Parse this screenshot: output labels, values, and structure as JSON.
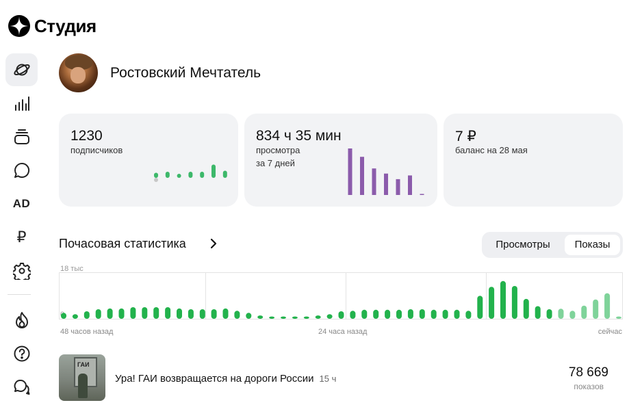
{
  "app": {
    "logo_label": "Студия",
    "logo_icon": "zen-star-icon"
  },
  "sidebar": {
    "items": [
      {
        "name": "planet",
        "label": "",
        "icon": "planet-icon",
        "active": true
      },
      {
        "name": "stats",
        "label": "",
        "icon": "bar-chart-icon"
      },
      {
        "name": "content",
        "label": "",
        "icon": "stack-icon"
      },
      {
        "name": "comments",
        "label": "",
        "icon": "comment-icon"
      },
      {
        "name": "ads",
        "label": "AD",
        "icon": "ad-icon"
      },
      {
        "name": "monetization",
        "label": "₽",
        "icon": "ruble-icon"
      },
      {
        "name": "settings",
        "label": "",
        "icon": "gear-icon"
      },
      {
        "name": "trending",
        "label": "",
        "icon": "fire-icon"
      },
      {
        "name": "help",
        "label": "",
        "icon": "help-icon"
      },
      {
        "name": "messages",
        "label": "",
        "icon": "chat-icon"
      }
    ]
  },
  "channel": {
    "name": "Ростовский Мечтатель"
  },
  "cards": {
    "subscribers": {
      "value": "1230",
      "label": "подписчиков",
      "spark_color": "#3db86a",
      "spark_values": [
        0.25,
        0.3,
        0.2,
        0.3,
        0.3,
        0.65,
        0.35
      ],
      "spark_dips": [
        0.2,
        0,
        0,
        0,
        0,
        0,
        0
      ]
    },
    "watch_time": {
      "value": "834 ч 35 мин",
      "label": "просмотра",
      "sublabel": "за 7 дней",
      "spark_color": "#8b5bab",
      "spark_values": [
        1.0,
        0.82,
        0.57,
        0.46,
        0.34,
        0.42,
        0.02
      ]
    },
    "balance": {
      "value": "7 ₽",
      "label": "баланс на 28 мая"
    }
  },
  "hourly": {
    "title": "Почасовая статистика",
    "tabs": [
      "Просмотры",
      "Показы"
    ],
    "selected_tab": "Показы",
    "y_max_label": "18 тыс",
    "y_min_label": "0",
    "x_labels": {
      "left": "48 часов назад",
      "middle": "24 часа назад",
      "right": "сейчас"
    },
    "bar_color": "#22b24c",
    "bar_color_light": "#7fd39a",
    "light_from_index": 43
  },
  "chart_data": {
    "type": "bar",
    "title": "Почасовая статистика",
    "ylim": [
      0,
      18000
    ],
    "y_tick_labels": [
      "18 тыс",
      "0"
    ],
    "x_tick_labels": [
      "48 часов назад",
      "24 часа назад",
      "сейчас"
    ],
    "series": [
      {
        "name": "Показы",
        "values": [
          2300,
          1800,
          2900,
          3700,
          4000,
          4000,
          4500,
          4500,
          4500,
          4500,
          4000,
          3700,
          3700,
          3700,
          4000,
          3100,
          2300,
          1300,
          900,
          900,
          900,
          900,
          1300,
          1800,
          2900,
          3100,
          3500,
          3500,
          3500,
          3500,
          3700,
          3700,
          3500,
          3500,
          3500,
          3100,
          8900,
          12400,
          14600,
          12700,
          7700,
          4900,
          3700,
          3900,
          3100,
          5100,
          7500,
          9900,
          900
        ]
      }
    ]
  },
  "video": {
    "title": "Ура! ГАИ возвращается на дороги России",
    "age": "15 ч",
    "count": "78 669",
    "count_label": "показов"
  }
}
